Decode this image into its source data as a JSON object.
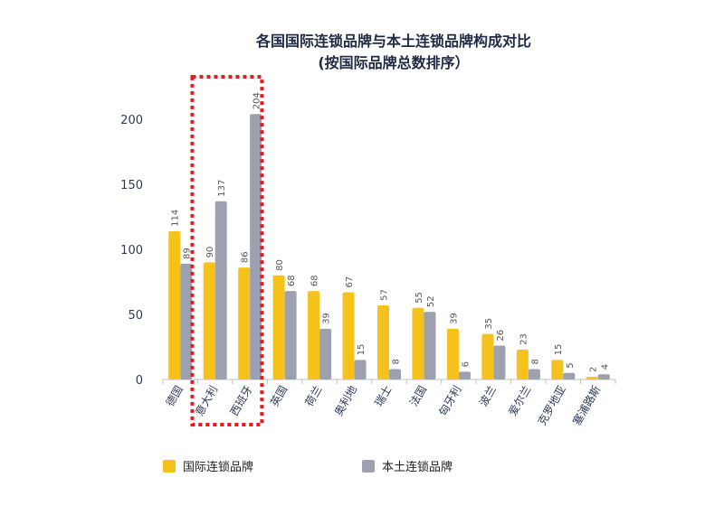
{
  "chart_data": {
    "type": "bar",
    "title": "各国国际连锁品牌与本土连锁品牌构成对比",
    "subtitle": "(按国际品牌总数排序）",
    "categories": [
      "德国",
      "意大利",
      "西班牙",
      "英国",
      "荷兰",
      "奥利地",
      "瑞士",
      "法国",
      "匈牙利",
      "波兰",
      "爱尔兰",
      "克罗地亚",
      "塞浦路斯"
    ],
    "series": [
      {
        "name": "国际连锁品牌",
        "color": "#F5C21B",
        "values": [
          114,
          90,
          86,
          80,
          68,
          67,
          57,
          55,
          39,
          35,
          23,
          15,
          2
        ]
      },
      {
        "name": "本土连锁品牌",
        "color": "#9CA0AF",
        "values": [
          89,
          137,
          204,
          68,
          39,
          15,
          8,
          52,
          6,
          26,
          8,
          5,
          4
        ]
      }
    ],
    "ylim": [
      0,
      200
    ],
    "yticks": [
      0,
      50,
      100,
      150,
      200
    ],
    "legend_position": "bottom",
    "highlight": {
      "categories": [
        "意大利",
        "西班牙"
      ],
      "color": "#E8191F",
      "style": "dotted"
    }
  }
}
